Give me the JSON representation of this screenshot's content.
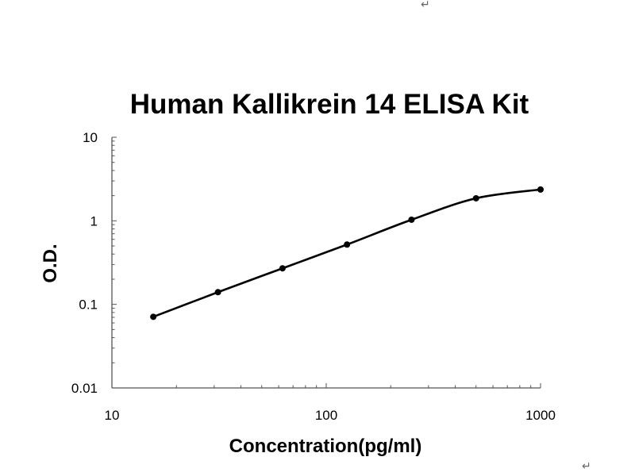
{
  "page": {
    "return_mark_top": "↵",
    "return_mark_bottom": "↵"
  },
  "chart_data": {
    "type": "line",
    "title": "Human Kallikrein 14 ELISA Kit",
    "xlabel": "Concentration(pg/ml)",
    "ylabel": "O.D.",
    "xscale": "log",
    "yscale": "log",
    "xlim": [
      10,
      1000
    ],
    "ylim": [
      0.01,
      10
    ],
    "x_tick_labels": [
      "10",
      "100",
      "1000"
    ],
    "y_tick_labels": [
      "0.01",
      "0.1",
      "1",
      "10"
    ],
    "grid": false,
    "legend": "none",
    "series": [
      {
        "x": [
          15.6,
          31.25,
          62.5,
          125,
          250,
          500,
          1000
        ],
        "y": [
          0.071,
          0.14,
          0.27,
          0.52,
          1.03,
          1.86,
          2.37
        ],
        "color": "#000000",
        "marker": "circle"
      }
    ]
  }
}
